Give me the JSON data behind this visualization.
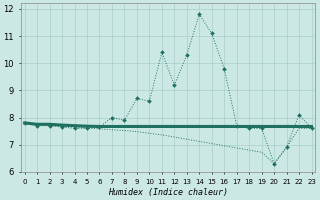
{
  "xlabel": "Humidex (Indice chaleur)",
  "x": [
    0,
    1,
    2,
    3,
    4,
    5,
    6,
    7,
    8,
    9,
    10,
    11,
    12,
    13,
    14,
    15,
    16,
    17,
    18,
    19,
    20,
    21,
    22,
    23
  ],
  "y_main": [
    7.8,
    7.7,
    7.7,
    7.65,
    7.6,
    7.6,
    7.65,
    8.0,
    7.9,
    8.7,
    8.6,
    10.4,
    9.2,
    10.3,
    11.8,
    11.1,
    9.8,
    7.7,
    7.6,
    7.6,
    6.3,
    6.9,
    8.1,
    7.6
  ],
  "y_avg": [
    7.8,
    7.75,
    7.75,
    7.72,
    7.7,
    7.68,
    7.67,
    7.67,
    7.67,
    7.67,
    7.67,
    7.67,
    7.67,
    7.67,
    7.67,
    7.67,
    7.67,
    7.67,
    7.67,
    7.67,
    7.67,
    7.67,
    7.67,
    7.67
  ],
  "y_min": [
    7.8,
    7.75,
    7.72,
    7.68,
    7.65,
    7.62,
    7.58,
    7.55,
    7.52,
    7.48,
    7.42,
    7.36,
    7.28,
    7.2,
    7.12,
    7.04,
    6.96,
    6.88,
    6.8,
    6.72,
    6.3,
    6.9,
    7.6,
    7.6
  ],
  "line_color": "#1e7060",
  "bg_color": "#cce8e5",
  "grid_color_major": "#aacfcc",
  "grid_color_minor": "#bbdbd8",
  "ylim": [
    6,
    12.2
  ],
  "yticks": [
    6,
    7,
    8,
    9,
    10,
    11,
    12
  ],
  "xlim": [
    -0.3,
    23.3
  ]
}
